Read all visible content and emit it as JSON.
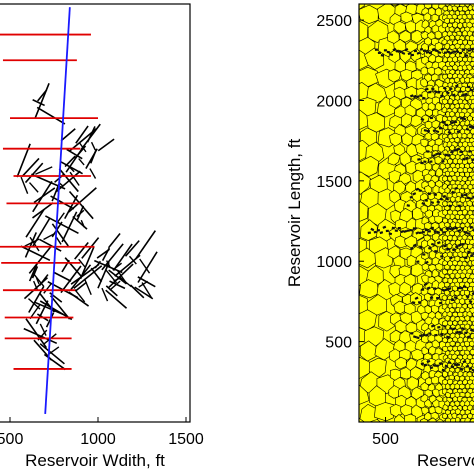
{
  "chart_data": [
    {
      "type": "scatter",
      "panel": "left",
      "description_of_marks": "fracture-network map: black line segments (natural fractures), red horizontal segments (hydraulic fractures), blue line (horizontal well)",
      "xlabel": "Reservoir Wdith, ft",
      "xlim": [
        400,
        1500
      ],
      "xticks": [
        500,
        1000,
        1500
      ],
      "xtick_labels": [
        "500",
        "1000",
        "1500"
      ],
      "ylim": [
        0,
        2600
      ],
      "yticks_shown": false,
      "grid": false,
      "well_line": {
        "color": "#1a1aff",
        "from": [
          700,
          50
        ],
        "to": [
          840,
          2580
        ]
      },
      "hydraulic_fractures": {
        "color": "#e00000",
        "segments": [
          [
            [
              420,
              2410
            ],
            [
              960,
              2410
            ]
          ],
          [
            [
              460,
              2250
            ],
            [
              880,
              2250
            ]
          ],
          [
            [
              500,
              1890
            ],
            [
              1000,
              1890
            ]
          ],
          [
            [
              460,
              1700
            ],
            [
              900,
              1700
            ]
          ],
          [
            [
              520,
              1530
            ],
            [
              960,
              1530
            ]
          ],
          [
            [
              480,
              1360
            ],
            [
              900,
              1360
            ]
          ],
          [
            [
              410,
              1090
            ],
            [
              980,
              1090
            ]
          ],
          [
            [
              450,
              990
            ],
            [
              900,
              990
            ]
          ],
          [
            [
              460,
              820
            ],
            [
              870,
              820
            ]
          ],
          [
            [
              470,
              650
            ],
            [
              860,
              650
            ]
          ],
          [
            [
              470,
              520
            ],
            [
              850,
              520
            ]
          ],
          [
            [
              520,
              330
            ],
            [
              850,
              330
            ]
          ]
        ]
      },
      "natural_fractures_color": "#000000"
    },
    {
      "type": "heatmap",
      "panel": "right",
      "description_of_marks": "Voronoi (PEBI) grid mesh, yellow cells with black edges, refined around fractures",
      "xlabel": "Reservoir",
      "ylabel": "Reservoir Length, ft",
      "xlim": [
        350,
        1000
      ],
      "xticks": [
        500
      ],
      "xtick_labels": [
        "500"
      ],
      "ylim": [
        0,
        2600
      ],
      "yticks": [
        500,
        1000,
        1500,
        2000,
        2500
      ],
      "ytick_labels": [
        "500",
        "1000",
        "1500",
        "2000",
        "2500"
      ],
      "fill_color": "#ffff00",
      "edge_color": "#000000",
      "grid": false
    }
  ]
}
